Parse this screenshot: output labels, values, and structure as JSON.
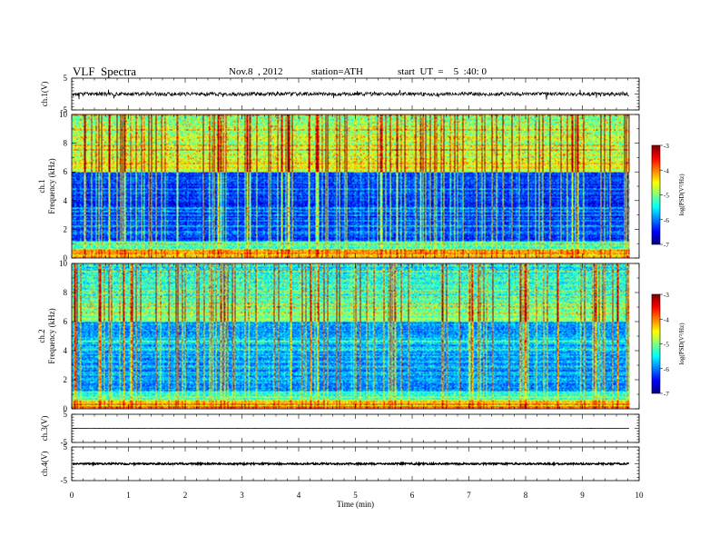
{
  "header": {
    "title": "VLF  Spectra",
    "date": "Nov.8  , 2012",
    "station": "station=ATH",
    "start": "start  UT  =    5  :40: 0"
  },
  "chart_data": [
    {
      "type": "line",
      "panel": "ch1-waveform",
      "ylabel": "ch.1(V)",
      "ylim": [
        -5,
        5
      ],
      "yticks": [
        "5",
        "-5"
      ],
      "x_range_min": [
        0,
        9.83
      ],
      "baseline_volts": 0,
      "typical_spread_volts": 0.6,
      "spike_amplitude_volts": 1.2
    },
    {
      "type": "heatmap",
      "panel": "ch1-spectrogram",
      "ylabel_top": "ch.1",
      "ylabel": "Frequency  (kHz)",
      "ylim_khz": [
        0,
        10
      ],
      "yticks": [
        "0",
        "2",
        "4",
        "6",
        "8",
        "10"
      ],
      "x_range_min": [
        0,
        9.83
      ],
      "colorbar": {
        "label": "log(PSD(V²/Hz)",
        "range": [
          -7,
          -3
        ],
        "ticks": [
          "-3",
          "-4",
          "-5",
          "-6",
          "-7"
        ],
        "colormap": "jet"
      },
      "description_levels": {
        "low_freq_khz": [
          0,
          0.6
        ],
        "low_freq_level": -4.6,
        "mid_band_khz": [
          1,
          6
        ],
        "mid_band_level": -6.4,
        "upper_band_khz": [
          6,
          10
        ],
        "upper_band_level": -4.1
      }
    },
    {
      "type": "heatmap",
      "panel": "ch2-spectrogram",
      "ylabel_top": "ch.2",
      "ylabel": "Frequency  (kHz)",
      "ylim_khz": [
        0,
        10
      ],
      "yticks": [
        "0",
        "2",
        "4",
        "6",
        "8",
        "10"
      ],
      "x_range_min": [
        0,
        9.83
      ],
      "colorbar": {
        "label": "log(PSD(V²/Hz)",
        "range": [
          -7,
          -3
        ],
        "ticks": [
          "-3",
          "-4",
          "-5",
          "-6",
          "-7"
        ],
        "colormap": "jet"
      }
    },
    {
      "type": "line",
      "panel": "ch3-waveform",
      "ylabel": "ch.3(V)",
      "ylim": [
        -5,
        5
      ],
      "yticks": [
        "5",
        "-5"
      ],
      "x_range_min": [
        0,
        9.83
      ],
      "baseline_volts": 0
    },
    {
      "type": "line",
      "panel": "ch4-waveform",
      "ylabel": "ch.4(V)",
      "ylim": [
        -5,
        5
      ],
      "yticks": [
        "5",
        "-5"
      ],
      "x_range_min": [
        0,
        9.83
      ],
      "baseline_volts": 0,
      "typical_spread_volts": 0.25
    }
  ],
  "xaxis": {
    "label": "Time  (min)",
    "range": [
      0,
      10
    ],
    "ticks": [
      "0",
      "1",
      "2",
      "3",
      "4",
      "5",
      "6",
      "7",
      "8",
      "9",
      "10"
    ]
  }
}
